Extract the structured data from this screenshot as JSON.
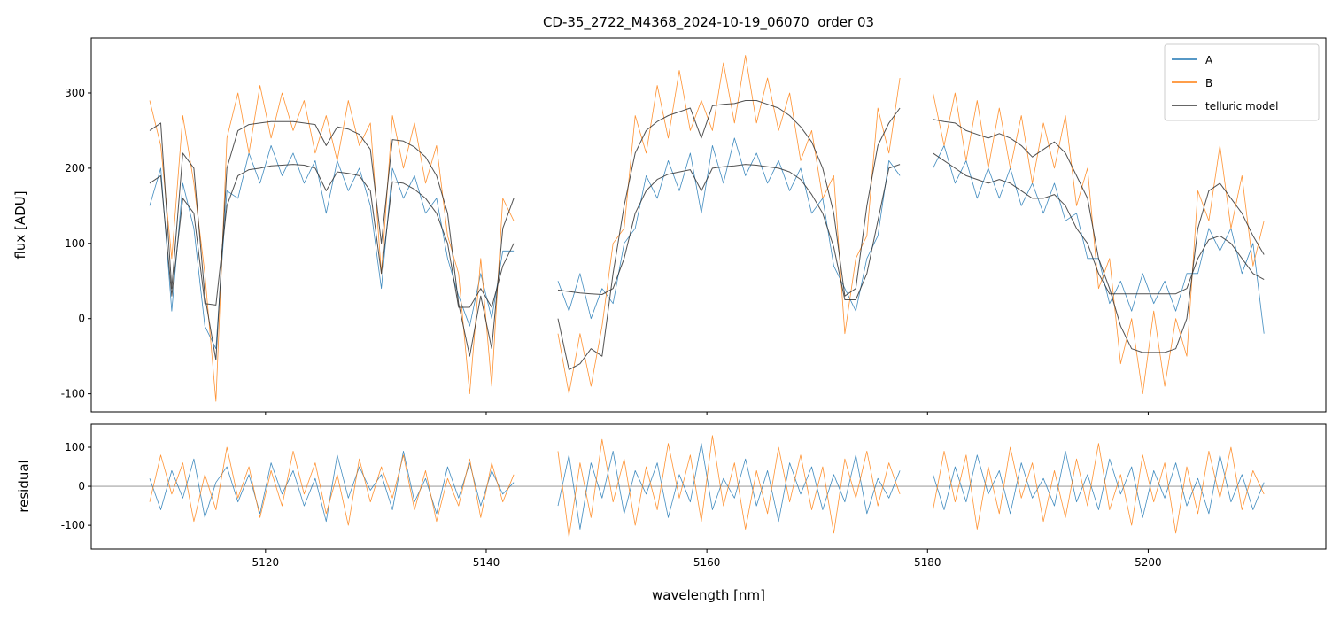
{
  "chart_data": [
    {
      "type": "line",
      "title": "CD-35_2722_M4368_2024-10-19_06070  order 03",
      "ylabel": "flux [ADU]",
      "xlim": [
        5104.2,
        5216.1
      ],
      "ylim": [
        -124,
        373
      ],
      "yticks": [
        -100,
        0,
        100,
        200,
        300
      ],
      "legend": "upper right",
      "x": [
        5109.5,
        5110.5,
        5111.5,
        5112.5,
        5113.5,
        5114.5,
        5115.5,
        5116.5,
        5117.5,
        5118.5,
        5119.5,
        5120.5,
        5121.5,
        5122.5,
        5123.5,
        5124.5,
        5125.5,
        5126.5,
        5127.5,
        5128.5,
        5129.5,
        5130.5,
        5131.5,
        5132.5,
        5133.5,
        5134.5,
        5135.5,
        5136.5,
        5137.5,
        5138.5,
        5139.5,
        5140.5,
        5141.5,
        5142.5,
        5143.5,
        5144.5,
        5145.5,
        5146.5,
        5147.5,
        5148.5,
        5149.5,
        5150.5,
        5151.5,
        5152.5,
        5153.5,
        5154.5,
        5155.5,
        5156.5,
        5157.5,
        5158.5,
        5159.5,
        5160.5,
        5161.5,
        5162.5,
        5163.5,
        5164.5,
        5165.5,
        5166.5,
        5167.5,
        5168.5,
        5169.5,
        5170.5,
        5171.5,
        5172.5,
        5173.5,
        5174.5,
        5175.5,
        5176.5,
        5177.5,
        5178.5,
        5179.5,
        5180.5,
        5181.5,
        5182.5,
        5183.5,
        5184.5,
        5185.5,
        5186.5,
        5187.5,
        5188.5,
        5189.5,
        5190.5,
        5191.5,
        5192.5,
        5193.5,
        5194.5,
        5195.5,
        5196.5,
        5197.5,
        5198.5,
        5199.5,
        5200.5,
        5201.5,
        5202.5,
        5203.5,
        5204.5,
        5205.5,
        5206.5,
        5207.5,
        5208.5,
        5209.5,
        5210.5
      ],
      "series": [
        {
          "name": "A",
          "color": "#1f77b4",
          "values": [
            150,
            200,
            10,
            180,
            120,
            -10,
            -40,
            170,
            160,
            220,
            180,
            230,
            190,
            220,
            180,
            210,
            140,
            210,
            170,
            200,
            150,
            40,
            200,
            160,
            190,
            140,
            160,
            80,
            30,
            -10,
            60,
            0,
            90,
            90,
            null,
            null,
            null,
            50,
            10,
            60,
            0,
            40,
            20,
            100,
            120,
            190,
            160,
            210,
            170,
            220,
            140,
            230,
            180,
            240,
            190,
            220,
            180,
            210,
            170,
            200,
            140,
            160,
            70,
            40,
            10,
            80,
            110,
            210,
            190,
            null,
            null,
            200,
            230,
            180,
            210,
            160,
            200,
            160,
            200,
            150,
            180,
            140,
            180,
            130,
            140,
            80,
            80,
            20,
            50,
            10,
            60,
            20,
            50,
            10,
            60,
            60,
            120,
            90,
            120,
            60,
            100,
            -20
          ]
        },
        {
          "name": "B",
          "color": "#ff7f0e",
          "values": [
            290,
            230,
            80,
            270,
            180,
            60,
            -110,
            240,
            300,
            220,
            310,
            240,
            300,
            250,
            290,
            220,
            270,
            210,
            290,
            230,
            260,
            60,
            270,
            200,
            260,
            180,
            230,
            110,
            60,
            -100,
            80,
            -90,
            160,
            130,
            null,
            null,
            null,
            -20,
            -100,
            -20,
            -90,
            -10,
            100,
            120,
            270,
            220,
            310,
            240,
            330,
            250,
            290,
            250,
            340,
            260,
            350,
            260,
            320,
            250,
            300,
            210,
            250,
            160,
            190,
            -20,
            80,
            110,
            280,
            220,
            320,
            null,
            null,
            300,
            230,
            300,
            210,
            290,
            200,
            280,
            200,
            270,
            180,
            260,
            200,
            270,
            150,
            200,
            40,
            80,
            -60,
            0,
            -100,
            10,
            -90,
            0,
            -50,
            170,
            130,
            230,
            120,
            190,
            70,
            130
          ]
        },
        {
          "name": "telluric model",
          "color": "#333333",
          "values": [
            180,
            190,
            30,
            160,
            140,
            20,
            18,
            150,
            190,
            198,
            200,
            203,
            204,
            205,
            204,
            200,
            170,
            195,
            193,
            190,
            170,
            60,
            182,
            180,
            172,
            160,
            140,
            100,
            15,
            15,
            40,
            15,
            70,
            100,
            null,
            null,
            null,
            38,
            36,
            34,
            33,
            32,
            40,
            80,
            140,
            170,
            185,
            192,
            195,
            198,
            170,
            200,
            202,
            203,
            205,
            204,
            202,
            200,
            195,
            185,
            165,
            140,
            95,
            25,
            25,
            60,
            130,
            200,
            205,
            null,
            null,
            220,
            210,
            200,
            190,
            185,
            180,
            185,
            180,
            170,
            160,
            160,
            165,
            150,
            120,
            100,
            60,
            33,
            33,
            33,
            33,
            33,
            33,
            33,
            40,
            80,
            105,
            110,
            100,
            80,
            60,
            52
          ]
        },
        {
          "name": "telluric model",
          "color": "#333333",
          "values": [
            250,
            260,
            40,
            220,
            200,
            30,
            -55,
            200,
            250,
            258,
            260,
            262,
            262,
            262,
            260,
            258,
            230,
            255,
            252,
            245,
            225,
            100,
            238,
            236,
            228,
            215,
            190,
            140,
            20,
            -50,
            30,
            -40,
            120,
            160,
            null,
            null,
            null,
            0,
            -68,
            -60,
            -40,
            -50,
            60,
            150,
            220,
            250,
            262,
            270,
            275,
            280,
            240,
            283,
            285,
            286,
            290,
            290,
            285,
            280,
            270,
            255,
            235,
            200,
            140,
            30,
            40,
            150,
            230,
            260,
            280,
            null,
            null,
            265,
            262,
            260,
            250,
            245,
            240,
            246,
            240,
            230,
            215,
            225,
            235,
            220,
            190,
            160,
            80,
            40,
            -10,
            -40,
            -45,
            -45,
            -45,
            -40,
            0,
            120,
            170,
            180,
            160,
            140,
            110,
            85
          ]
        }
      ]
    },
    {
      "type": "line",
      "ylabel": "residual",
      "xlabel": "wavelength [nm]",
      "xlim": [
        5104.2,
        5216.1
      ],
      "xticks": [
        5120,
        5140,
        5160,
        5180,
        5200
      ],
      "ylim": [
        -161,
        159
      ],
      "yticks": [
        -100,
        0,
        100
      ],
      "hline": 0,
      "series": [
        {
          "color": "#1f77b4",
          "values": [
            20,
            -60,
            40,
            -30,
            70,
            -80,
            10,
            50,
            -40,
            30,
            -70,
            60,
            -20,
            40,
            -50,
            20,
            -90,
            80,
            -30,
            50,
            -10,
            30,
            -60,
            90,
            -40,
            20,
            -70,
            50,
            -30,
            60,
            -50,
            40,
            -20,
            10,
            null,
            null,
            null,
            -50,
            80,
            -110,
            60,
            -30,
            90,
            -70,
            40,
            -20,
            60,
            -80,
            30,
            -40,
            110,
            -60,
            20,
            -30,
            70,
            -50,
            40,
            -90,
            60,
            -20,
            50,
            -60,
            30,
            -40,
            80,
            -70,
            20,
            -30,
            40,
            null,
            null,
            30,
            -60,
            50,
            -40,
            80,
            -20,
            40,
            -70,
            60,
            -30,
            20,
            -50,
            90,
            -40,
            30,
            -60,
            70,
            -20,
            50,
            -80,
            40,
            -30,
            60,
            -50,
            20,
            -70,
            80,
            -40,
            30,
            -60,
            10
          ]
        },
        {
          "color": "#ff7f0e",
          "values": [
            -40,
            80,
            -20,
            60,
            -90,
            30,
            -60,
            100,
            -30,
            50,
            -80,
            40,
            -50,
            90,
            -20,
            60,
            -70,
            30,
            -100,
            70,
            -40,
            50,
            -30,
            80,
            -60,
            40,
            -90,
            20,
            -50,
            70,
            -80,
            60,
            -40,
            30,
            null,
            null,
            null,
            90,
            -130,
            60,
            -80,
            120,
            -40,
            70,
            -100,
            50,
            -60,
            110,
            -30,
            80,
            -90,
            130,
            -50,
            60,
            -110,
            40,
            -70,
            100,
            -40,
            80,
            -60,
            50,
            -120,
            70,
            -30,
            90,
            -50,
            60,
            -20,
            null,
            null,
            -60,
            90,
            -40,
            80,
            -110,
            50,
            -70,
            100,
            -30,
            60,
            -90,
            40,
            -80,
            70,
            -50,
            110,
            -60,
            30,
            -100,
            80,
            -40,
            60,
            -120,
            50,
            -70,
            90,
            -30,
            100,
            -60,
            40,
            -20
          ]
        }
      ]
    }
  ]
}
